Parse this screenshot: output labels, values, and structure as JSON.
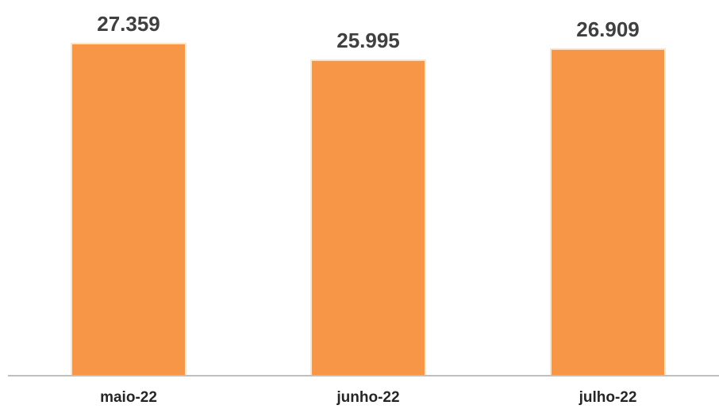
{
  "chart_data": {
    "type": "bar",
    "categories": [
      "maio-22",
      "junho-22",
      "julho-22"
    ],
    "values": [
      27359,
      25995,
      26909
    ],
    "value_labels": [
      "27.359",
      "25.995",
      "26.909"
    ],
    "title": "",
    "xlabel": "",
    "ylabel": "",
    "ylim": [
      0,
      27359
    ],
    "grid": false,
    "legend": "none",
    "bar_color": "#f79646",
    "axis_color": "#bfbfbf"
  }
}
